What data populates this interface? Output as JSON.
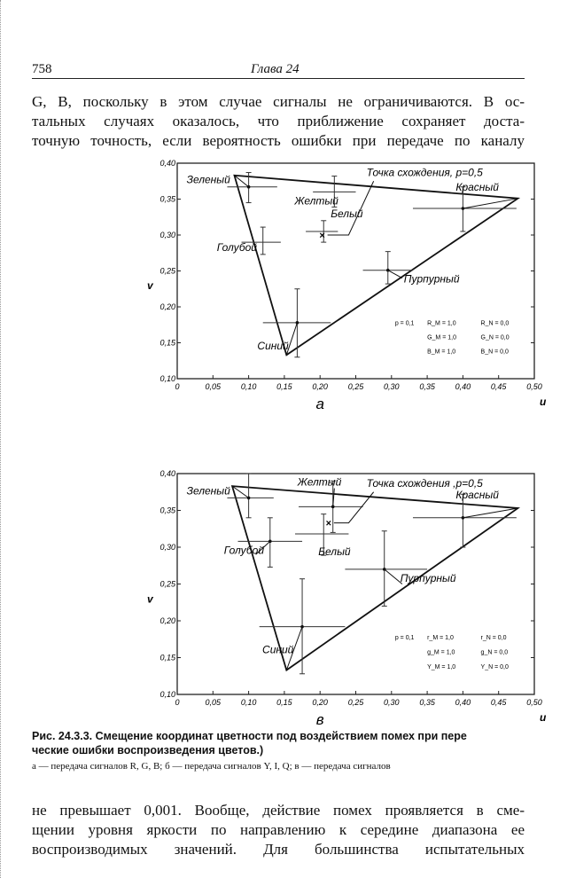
{
  "header": {
    "page_number": "758",
    "chapter": "Глава 24"
  },
  "top_text": [
    "G, B, поскольку в этом случае сигналы не ограничиваются. В ос-",
    "тальных случаях оказалось, что приближение сохраняет доста-",
    "точную точность, если вероятность ошибки при передаче по каналу"
  ],
  "chart_data": [
    {
      "type": "scatter",
      "panel_label": "а",
      "xlabel": "u",
      "ylabel": "v",
      "xlim": [
        0,
        0.5
      ],
      "ylim": [
        0.1,
        0.4
      ],
      "xticks": [
        "0",
        "0,05",
        "0,10",
        "0,15",
        "0,20",
        "0,25",
        "0,30",
        "0,35",
        "0,40",
        "0,45",
        "0,50"
      ],
      "yticks": [
        "0,10",
        "0,15",
        "0,20",
        "0,25",
        "0,30",
        "0,35",
        "0,40"
      ],
      "triangle": {
        "green": [
          0.08,
          0.383
        ],
        "red": [
          0.477,
          0.351
        ],
        "blue": [
          0.153,
          0.133
        ]
      },
      "convergence_label": "Точка схождения, p=0,5",
      "points": [
        {
          "name": "Зеленый",
          "u": 0.1,
          "v": 0.367,
          "u_range": [
            0.07,
            0.14
          ],
          "v_range": [
            0.345,
            0.387
          ],
          "from": [
            0.08,
            0.383
          ]
        },
        {
          "name": "Желтый",
          "u": 0.22,
          "v": 0.36,
          "u_range": [
            0.19,
            0.25
          ],
          "v_range": [
            0.339,
            0.382
          ],
          "from": null
        },
        {
          "name": "Белый",
          "u": 0.205,
          "v": 0.305,
          "u_range": [
            0.18,
            0.225
          ],
          "v_range": [
            0.29,
            0.32
          ],
          "from": null
        },
        {
          "name": "Голубой",
          "u": 0.12,
          "v": 0.29,
          "u_range": [
            0.09,
            0.145
          ],
          "v_range": [
            0.273,
            0.311
          ],
          "from": null
        },
        {
          "name": "Красный",
          "u": 0.4,
          "v": 0.337,
          "u_range": [
            0.33,
            0.475
          ],
          "v_range": [
            0.305,
            0.367
          ],
          "from": [
            0.477,
            0.351
          ]
        },
        {
          "name": "Пурпурный",
          "u": 0.295,
          "v": 0.251,
          "u_range": [
            0.26,
            0.33
          ],
          "v_range": [
            0.232,
            0.277
          ],
          "from": [
            0.315,
            0.24
          ]
        },
        {
          "name": "Синий",
          "u": 0.168,
          "v": 0.178,
          "u_range": [
            0.12,
            0.215
          ],
          "v_range": [
            0.13,
            0.225
          ],
          "from": [
            0.153,
            0.133
          ]
        }
      ],
      "convergence_point": [
        0.203,
        0.3
      ],
      "legend": [
        "p = 0,1",
        "R_M = 1,0",
        "G_M = 1,0",
        "B_M = 1,0",
        "R_N = 0,0",
        "G_N = 0,0",
        "B_N = 0,0"
      ]
    },
    {
      "type": "scatter",
      "panel_label": "в",
      "xlabel": "u",
      "ylabel": "v",
      "xlim": [
        0,
        0.5
      ],
      "ylim": [
        0.1,
        0.4
      ],
      "xticks": [
        "0",
        "0,05",
        "0,10",
        "0,15",
        "0,20",
        "0,25",
        "0,30",
        "0,35",
        "0,40",
        "0,45",
        "0,50"
      ],
      "yticks": [
        "0,10",
        "0,15",
        "0,20",
        "0,25",
        "0,30",
        "0,35",
        "0,40"
      ],
      "triangle": {
        "green": [
          0.077,
          0.383
        ],
        "red": [
          0.477,
          0.353
        ],
        "blue": [
          0.153,
          0.133
        ]
      },
      "convergence_label": "Точка схождения ,p=0,5",
      "points": [
        {
          "name": "Зеленый",
          "u": 0.1,
          "v": 0.367,
          "u_range": [
            0.07,
            0.135
          ],
          "v_range": [
            0.34,
            0.4
          ],
          "from": [
            0.077,
            0.383
          ]
        },
        {
          "name": "Желтый",
          "u": 0.218,
          "v": 0.355,
          "u_range": [
            0.17,
            0.26
          ],
          "v_range": [
            0.32,
            0.39
          ],
          "from": [
            0.22,
            0.38
          ]
        },
        {
          "name": "Белый",
          "u": 0.205,
          "v": 0.318,
          "u_range": [
            0.165,
            0.24
          ],
          "v_range": [
            0.289,
            0.345
          ],
          "from": null
        },
        {
          "name": "Голубой",
          "u": 0.13,
          "v": 0.308,
          "u_range": [
            0.085,
            0.175
          ],
          "v_range": [
            0.273,
            0.34
          ],
          "from": [
            0.11,
            0.29
          ]
        },
        {
          "name": "Красный",
          "u": 0.4,
          "v": 0.34,
          "u_range": [
            0.33,
            0.475
          ],
          "v_range": [
            0.3,
            0.372
          ],
          "from": [
            0.477,
            0.353
          ]
        },
        {
          "name": "Пурпурный",
          "u": 0.29,
          "v": 0.27,
          "u_range": [
            0.235,
            0.35
          ],
          "v_range": [
            0.22,
            0.322
          ],
          "from": [
            0.315,
            0.25
          ]
        },
        {
          "name": "Синий",
          "u": 0.175,
          "v": 0.192,
          "u_range": [
            0.115,
            0.235
          ],
          "v_range": [
            0.128,
            0.257
          ],
          "from": [
            0.153,
            0.133
          ]
        }
      ],
      "convergence_point": [
        0.212,
        0.333
      ],
      "legend": [
        "p = 0,1",
        "r_M = 1,0",
        "g_M = 1,0",
        "Y_M = 1,0",
        "r_N = 0,0",
        "g_N = 0,0",
        "Y_N = 0,0"
      ]
    }
  ],
  "caption": {
    "line1": "Рис. 24.3.3. Смещение координат цветности под воздействием помех при пере",
    "line2": "ческие ошибки воспроизведения цветов.)",
    "line3": "а — передача сигналов  R, G, B; б — передача сигналов  Y,  I,  Q;  в — передача сигналов"
  },
  "bottom_text": [
    "не превышает 0,001. Вообще, действие помех проявляется в сме-",
    "щении уровня яркости по направлению к середине диапазона ее",
    "воспроизводимых значений. Для большинства испытательных"
  ]
}
